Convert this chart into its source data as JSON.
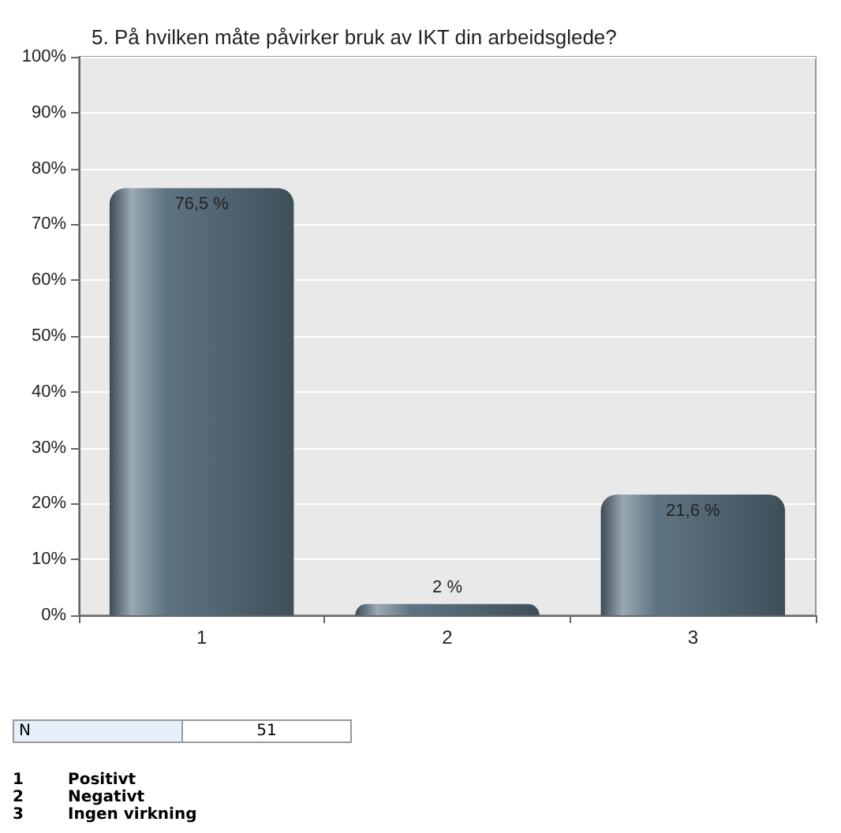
{
  "chart_data": {
    "type": "bar",
    "title": "5. På hvilken måte påvirker bruk av IKT din arbeidsglede?",
    "categories": [
      "1",
      "2",
      "3"
    ],
    "values": [
      76.5,
      2,
      21.6
    ],
    "color": "#5f7482",
    "value_labels": [
      "76,5 %",
      "2 %",
      "21,6 %"
    ],
    "ylim": [
      0,
      100
    ],
    "yticks": [
      {
        "value": 0,
        "label": "0%"
      },
      {
        "value": 10,
        "label": "10%"
      },
      {
        "value": 20,
        "label": "20%"
      },
      {
        "value": 30,
        "label": "30%"
      },
      {
        "value": 40,
        "label": "40%"
      },
      {
        "value": 50,
        "label": "50%"
      },
      {
        "value": 60,
        "label": "60%"
      },
      {
        "value": 70,
        "label": "70%"
      },
      {
        "value": 80,
        "label": "80%"
      },
      {
        "value": 90,
        "label": "90%"
      },
      {
        "value": 100,
        "label": "100%"
      }
    ],
    "grid": "y",
    "annotations": [
      "N",
      "51",
      "1",
      "Positivt",
      "2",
      "Negativt",
      "3",
      "Ingen virkning"
    ]
  }
}
